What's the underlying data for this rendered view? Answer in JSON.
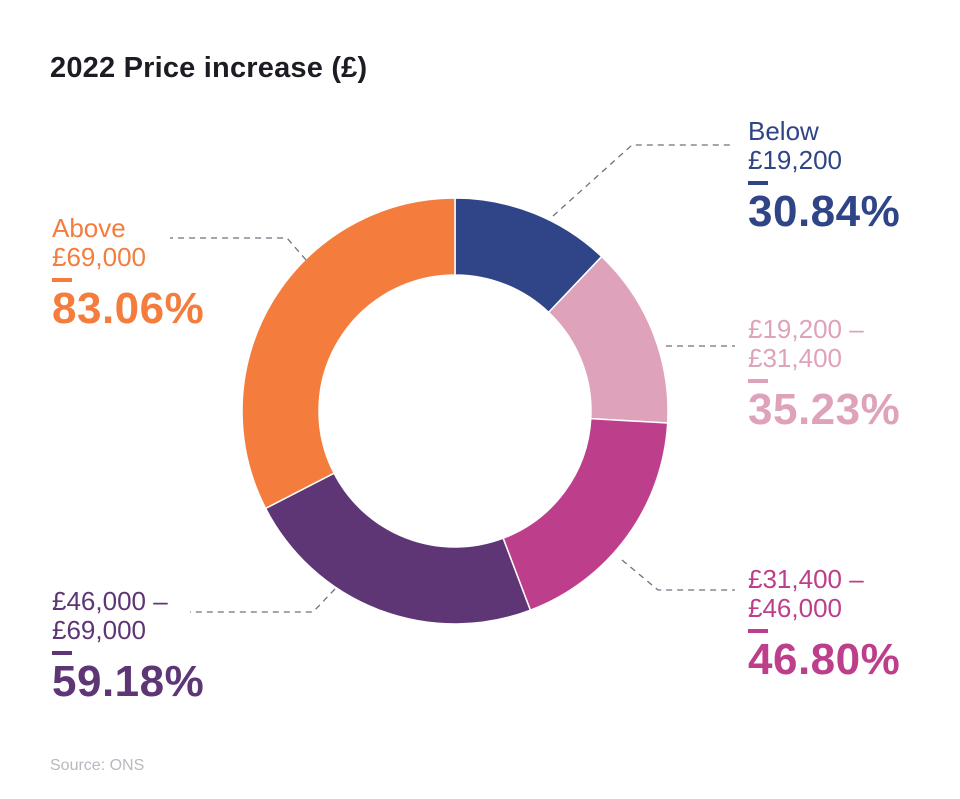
{
  "chart_data": {
    "type": "pie",
    "style": "donut",
    "title": "2022 Price increase (£)",
    "source": "Source: ONS",
    "slices": [
      {
        "category": "Below\n£19,200",
        "value": 30.84,
        "label": "30.84%",
        "color": "#2f4587"
      },
      {
        "category": "£19,200 –\n£31,400",
        "value": 35.23,
        "label": "35.23%",
        "color": "#dea2bb"
      },
      {
        "category": "£31,400 –\n£46,000",
        "value": 46.8,
        "label": "46.80%",
        "color": "#bd3e8a"
      },
      {
        "category": "£46,000 –\n£69,000",
        "value": 59.18,
        "label": "59.18%",
        "color": "#5e3575"
      },
      {
        "category": "Above\n£69,000",
        "value": 83.06,
        "label": "83.06%",
        "color": "#f47d3e"
      }
    ]
  }
}
